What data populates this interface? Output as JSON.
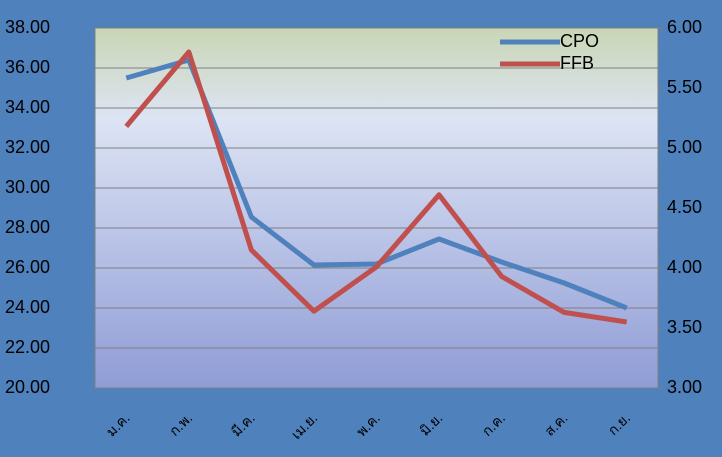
{
  "chart_data": {
    "type": "line",
    "categories": [
      "ม.ค.",
      "ก.พ.",
      "มี.ค.",
      "เม.ย.",
      "พ.ค.",
      "มิ.ย.",
      "ก.ค.",
      "ส.ค.",
      "ก.ย."
    ],
    "series": [
      {
        "name": "CPO",
        "color": "#4f81bd",
        "values": [
          35.5,
          36.4,
          28.55,
          26.15,
          26.2,
          27.45,
          26.3,
          25.25,
          24.0
        ]
      },
      {
        "name": "FFB",
        "color": "#c0504d",
        "axis": "y2",
        "values": [
          5.18,
          5.8,
          4.15,
          3.64,
          4.01,
          4.61,
          3.93,
          3.63,
          3.55
        ]
      }
    ],
    "ylim": [
      20,
      38
    ],
    "yticks": [
      {
        "value": 20,
        "label": "20.00"
      },
      {
        "value": 22,
        "label": "22.00"
      },
      {
        "value": 24,
        "label": "24.00"
      },
      {
        "value": 26,
        "label": "26.00"
      },
      {
        "value": 28,
        "label": "28.00"
      },
      {
        "value": 30,
        "label": "30.00"
      },
      {
        "value": 32,
        "label": "32.00"
      },
      {
        "value": 34,
        "label": "34.00"
      },
      {
        "value": 36,
        "label": "36.00"
      },
      {
        "value": 38,
        "label": "38.00"
      }
    ],
    "y2lim": [
      3,
      6
    ],
    "y2ticks": [
      {
        "value": 3,
        "label": "3.00"
      },
      {
        "value": 3.5,
        "label": "3.50"
      },
      {
        "value": 4,
        "label": "4.00"
      },
      {
        "value": 4.5,
        "label": "4.50"
      },
      {
        "value": 5,
        "label": "5.00"
      },
      {
        "value": 5.5,
        "label": "5.50"
      },
      {
        "value": 6,
        "label": "6.00"
      }
    ],
    "grid": true,
    "legend": "top-right"
  }
}
